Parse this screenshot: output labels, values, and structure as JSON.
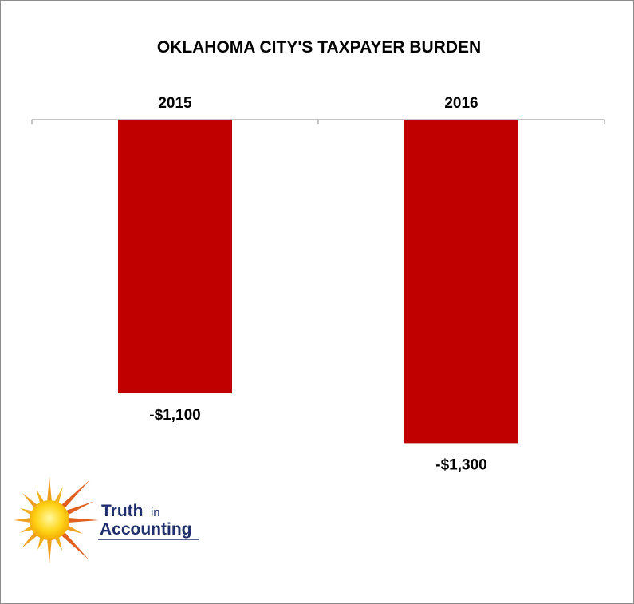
{
  "chart_data": {
    "type": "bar",
    "title": "OKLAHOMA CITY'S TAXPAYER BURDEN",
    "categories": [
      "2015",
      "2016"
    ],
    "values": [
      -1100,
      -1300
    ],
    "value_labels": [
      "-$1,100",
      "-$1,300"
    ],
    "category_axis_position": "top",
    "ylim": [
      -1500,
      0
    ],
    "grid": false,
    "legend": "none",
    "colors": {
      "bar": "#c00000",
      "axis": "#8c8c8c"
    }
  },
  "logo": {
    "line1": "Truth",
    "line1_small": "in",
    "line2": "Accounting",
    "icon": "sun-icon"
  }
}
